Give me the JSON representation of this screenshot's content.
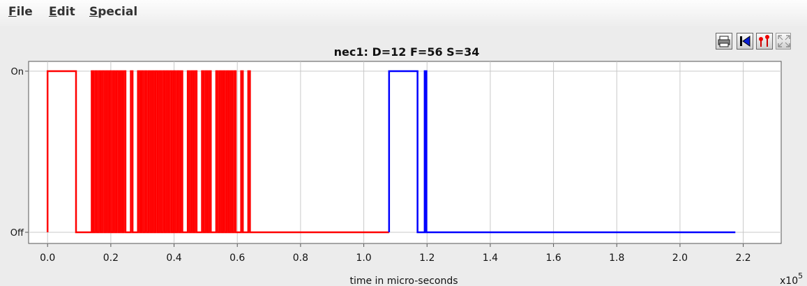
{
  "menu": {
    "items": [
      {
        "label": "File",
        "mnemonic": "F",
        "rest": "ile"
      },
      {
        "label": "Edit",
        "mnemonic": "E",
        "rest": "dit"
      },
      {
        "label": "Special",
        "mnemonic": "S",
        "rest": "pecial"
      }
    ]
  },
  "toolbar": {
    "buttons": [
      {
        "name": "print-icon"
      },
      {
        "name": "skip-to-start-icon"
      },
      {
        "name": "marker-icon"
      },
      {
        "name": "fit-zoom-icon"
      }
    ]
  },
  "chart_data": {
    "type": "line",
    "title": "nec1: D=12 F=56 S=34",
    "xlabel": "time in micro-seconds",
    "ylabel": "",
    "x_multiplier": "x10",
    "x_multiplier_exp": "5",
    "xlim": [
      -0.06,
      2.32
    ],
    "ylim": [
      0,
      1
    ],
    "x_ticks": [
      0.0,
      0.2,
      0.4,
      0.6,
      0.8,
      1.0,
      1.2,
      1.4,
      1.6,
      1.8,
      2.0,
      2.2
    ],
    "x_tick_labels": [
      "0.0",
      "0.2",
      "0.4",
      "0.6",
      "0.8",
      "1.0",
      "1.2",
      "1.4",
      "1.6",
      "1.8",
      "2.0",
      "2.2"
    ],
    "y_ticks": [
      0,
      1
    ],
    "y_tick_labels": [
      "Off",
      "On"
    ],
    "grid": true,
    "legend": "none",
    "series": [
      {
        "color": "#ff0000",
        "pulses": [
          [
            0.0,
            0.09
          ],
          [
            0.1395,
            0.145
          ],
          [
            0.1507,
            0.1563
          ],
          [
            0.162,
            0.1676
          ],
          [
            0.1732,
            0.1789
          ],
          [
            0.1845,
            0.1901
          ],
          [
            0.1957,
            0.2013
          ],
          [
            0.207,
            0.2126
          ],
          [
            0.2182,
            0.2239
          ],
          [
            0.2295,
            0.2351
          ],
          [
            0.2407,
            0.2464
          ],
          [
            0.2632,
            0.2689
          ],
          [
            0.2857,
            0.2914
          ],
          [
            0.2969,
            0.3025
          ],
          [
            0.3082,
            0.3138
          ],
          [
            0.3195,
            0.3251
          ],
          [
            0.3307,
            0.3363
          ],
          [
            0.3419,
            0.3476
          ],
          [
            0.3532,
            0.3588
          ],
          [
            0.3645,
            0.3701
          ],
          [
            0.3757,
            0.3813
          ],
          [
            0.3869,
            0.3926
          ],
          [
            0.3982,
            0.4038
          ],
          [
            0.4095,
            0.4151
          ],
          [
            0.4207,
            0.4263
          ],
          [
            0.4432,
            0.4488
          ],
          [
            0.4545,
            0.4601
          ],
          [
            0.4657,
            0.4713
          ],
          [
            0.4882,
            0.4938
          ],
          [
            0.4995,
            0.5051
          ],
          [
            0.5107,
            0.5163
          ],
          [
            0.5332,
            0.5388
          ],
          [
            0.5445,
            0.5501
          ],
          [
            0.5557,
            0.5613
          ],
          [
            0.567,
            0.5726
          ],
          [
            0.5782,
            0.5838
          ],
          [
            0.5895,
            0.5951
          ],
          [
            0.612,
            0.6176
          ],
          [
            0.6345,
            0.6401
          ]
        ],
        "x_start": 0.0,
        "x_end": 1.08
      },
      {
        "color": "#0000ff",
        "pulses": [
          [
            1.08,
            1.17
          ],
          [
            1.1925,
            1.1981
          ]
        ],
        "x_start": 1.08,
        "x_end": 2.175
      }
    ]
  }
}
